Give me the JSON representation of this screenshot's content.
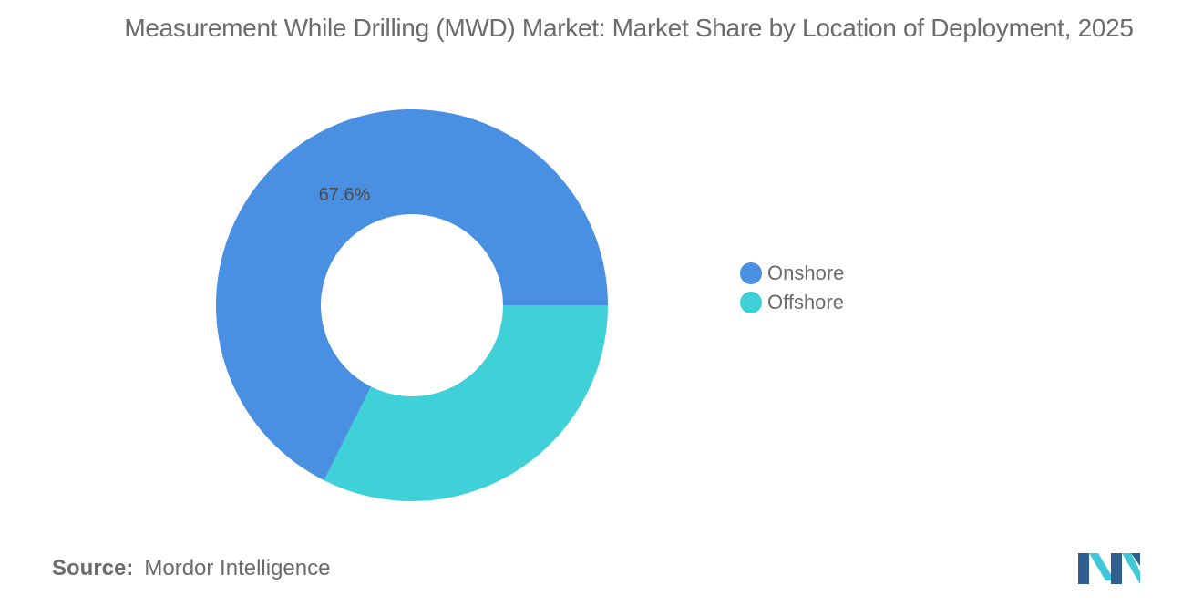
{
  "chart_data": {
    "type": "pie",
    "variant": "donut",
    "title": "Measurement While Drilling (MWD) Market: Market Share by Location of Deployment, 2025",
    "categories": [
      "Onshore",
      "Offshore"
    ],
    "values": [
      67.6,
      32.4
    ],
    "data_labels": [
      "67.6%",
      ""
    ],
    "colors": [
      "#4a90e2",
      "#40d0d8"
    ],
    "legend_position": "right"
  },
  "source": {
    "label": "Source:",
    "value": "Mordor Intelligence"
  },
  "logo": {
    "icon": "mordor-intelligence-logo",
    "colors": [
      "#2f5f8f",
      "#40c8d8"
    ]
  }
}
